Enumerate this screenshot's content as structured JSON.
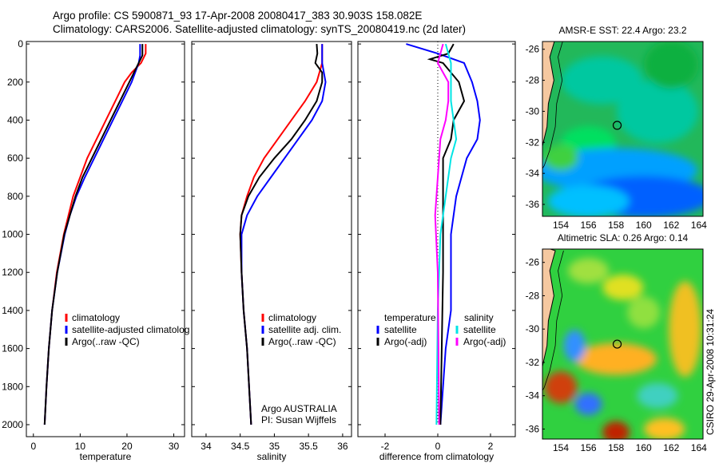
{
  "title": {
    "line1": "Argo profile: CS 5900871_93 17-Apr-2008 20080417_383 30.903S 158.082E",
    "line2": "Climatology: CARS2006. Satellite-adjusted climatology: synTS_20080419.nc (2d later)"
  },
  "credit": "CSIRO 29-Apr-2008 10:31:24",
  "chart_data": [
    {
      "type": "line",
      "xlabel": "temperature",
      "ylabel": "",
      "xlim": [
        -1.5,
        32.3
      ],
      "ylim": [
        2063,
        -13
      ],
      "xticks": [
        0,
        10,
        20,
        30
      ],
      "yticks": [
        0,
        200,
        400,
        600,
        800,
        1000,
        1200,
        1400,
        1600,
        1800,
        2000
      ],
      "legend": {
        "placement": "bottom-right",
        "entries": [
          "climatology",
          "satellite-adjusted climatolog",
          "Argo(..raw -QC)"
        ]
      },
      "series": [
        {
          "name": "climatology",
          "color": "#ff0000",
          "depth": [
            0,
            50,
            100,
            150,
            200,
            300,
            400,
            500,
            600,
            700,
            800,
            900,
            1000,
            1200,
            1400,
            1600,
            1800,
            2000
          ],
          "values": [
            24,
            24,
            23,
            21,
            19.5,
            17.5,
            15.5,
            13.5,
            11.5,
            10,
            8.5,
            7.5,
            6.5,
            5,
            4,
            3.3,
            2.8,
            2.4
          ]
        },
        {
          "name": "satellite-adjusted climatology",
          "color": "#0000ff",
          "depth": [
            0,
            60,
            100,
            200,
            300,
            400,
            500,
            600,
            700,
            800,
            900,
            1000,
            1200,
            1400,
            1600,
            1800,
            2000
          ],
          "values": [
            22.8,
            22.8,
            22.5,
            21,
            19,
            17,
            15,
            13,
            11,
            9.2,
            7.8,
            6.7,
            5.1,
            4,
            3.3,
            2.8,
            2.4
          ]
        },
        {
          "name": "Argo(..raw -QC)",
          "color": "#000000",
          "depth": [
            0,
            60,
            100,
            200,
            300,
            400,
            500,
            600,
            700,
            800,
            900,
            1000,
            1200,
            1400,
            1600,
            1800,
            2000
          ],
          "values": [
            23.3,
            23.3,
            22.5,
            20.5,
            18.5,
            16.5,
            14.5,
            12.5,
            10.5,
            9,
            7.8,
            6.6,
            5.1,
            4,
            3.3,
            2.8,
            2.4
          ]
        }
      ]
    },
    {
      "type": "line",
      "xlabel": "salinity",
      "xlim": [
        33.79,
        36.13
      ],
      "ylim": [
        2063,
        -13
      ],
      "xticks": [
        34,
        34.5,
        35,
        35.5,
        36
      ],
      "legend": {
        "placement": "bottom-right",
        "entries": [
          "climatology",
          "satellite adj. clim.",
          "Argo(..raw -QC)"
        ]
      },
      "annotation": [
        "Argo AUSTRALIA",
        "PI: Susan Wijffels"
      ],
      "series": [
        {
          "name": "climatology",
          "color": "#ff0000",
          "depth": [
            0,
            100,
            200,
            300,
            400,
            500,
            600,
            700,
            800,
            900,
            1000,
            1200,
            1400,
            1600,
            1800,
            2000
          ],
          "values": [
            35.7,
            35.7,
            35.62,
            35.45,
            35.25,
            35.05,
            34.85,
            34.7,
            34.6,
            34.52,
            34.5,
            34.52,
            34.55,
            34.6,
            34.63,
            34.66
          ]
        },
        {
          "name": "satellite adj. clim.",
          "color": "#0000ff",
          "depth": [
            0,
            100,
            200,
            300,
            400,
            500,
            600,
            700,
            800,
            900,
            1000,
            1200,
            1400,
            1600,
            1800,
            2000
          ],
          "values": [
            35.7,
            35.7,
            35.75,
            35.7,
            35.55,
            35.35,
            35.15,
            34.95,
            34.75,
            34.6,
            34.52,
            34.52,
            34.55,
            34.6,
            34.63,
            34.66
          ]
        },
        {
          "name": "Argo(..raw -QC)",
          "color": "#000000",
          "depth": [
            0,
            50,
            100,
            150,
            200,
            300,
            400,
            500,
            600,
            700,
            800,
            900,
            1000,
            1200,
            1400,
            1600,
            1800,
            2000
          ],
          "values": [
            35.62,
            35.63,
            35.6,
            35.7,
            35.7,
            35.62,
            35.45,
            35.25,
            35.0,
            34.78,
            34.62,
            34.52,
            34.5,
            34.52,
            34.55,
            34.6,
            34.63,
            34.66
          ]
        }
      ]
    },
    {
      "type": "line",
      "xlabel": "difference from climatology",
      "xlim": [
        -3.03,
        2.94
      ],
      "ylim": [
        2063,
        -13
      ],
      "xticks": [
        -2,
        0,
        2
      ],
      "legend": {
        "placement": "bottom",
        "entries": [
          "temperature",
          "satellite",
          "Argo(-adj)",
          "salinity",
          "satellite",
          "Argo(-adj)"
        ]
      },
      "series": [
        {
          "name": "temperature satellite",
          "color": "#0000ff",
          "depth": [
            0,
            50,
            100,
            200,
            300,
            400,
            500,
            600,
            700,
            800,
            1000,
            1200,
            1400,
            1600,
            2000
          ],
          "values": [
            -1.2,
            0,
            1.0,
            1.3,
            1.5,
            1.6,
            1.5,
            1.1,
            0.9,
            0.7,
            0.5,
            0.5,
            0.5,
            0.3,
            0.1
          ]
        },
        {
          "name": "temperature Argo(-adj)",
          "color": "#000000",
          "depth": [
            0,
            50,
            80,
            100,
            200,
            300,
            400,
            500,
            600,
            800,
            1000,
            1200,
            1600,
            2000
          ],
          "values": [
            0.6,
            0.4,
            -0.3,
            0.2,
            0.8,
            1.0,
            0.6,
            0.5,
            0.2,
            0.2,
            0.2,
            0.2,
            0.15,
            0.1
          ]
        },
        {
          "name": "salinity satellite",
          "color": "#00e5e5",
          "depth": [
            0,
            100,
            200,
            300,
            400,
            500,
            600,
            800,
            1000,
            1400,
            2000
          ],
          "values": [
            0.3,
            0.5,
            0.5,
            0.5,
            0.6,
            0.7,
            0.5,
            0.3,
            0.1,
            0,
            -0.05
          ]
        },
        {
          "name": "salinity Argo(-adj)",
          "color": "#ff00ff",
          "depth": [
            0,
            100,
            200,
            300,
            400,
            500,
            700,
            900,
            1200,
            2000
          ],
          "values": [
            0.2,
            0,
            0.4,
            0.4,
            0.3,
            0.1,
            0,
            -0.1,
            0,
            0.05
          ]
        }
      ]
    },
    {
      "type": "heatmap",
      "title": "AMSR-E SST: 22.4  Argo: 23.2",
      "xlim": [
        152.67,
        164.3
      ],
      "ylim": [
        -36.77,
        -25.5
      ],
      "xticks": [
        154,
        156,
        158,
        160,
        162,
        164
      ],
      "yticks": [
        -26,
        -28,
        -30,
        -32,
        -34,
        -36
      ],
      "marker": [
        158.082,
        -30.903
      ]
    },
    {
      "type": "heatmap",
      "title": "Altimetric SLA: 0.26  Argo: 0.14",
      "xlim": [
        152.67,
        164.3
      ],
      "ylim": [
        -36.6,
        -25.2
      ],
      "xticks": [
        154,
        156,
        158,
        160,
        162,
        164
      ],
      "yticks": [
        -26,
        -28,
        -30,
        -32,
        -34,
        -36
      ],
      "marker": [
        158.082,
        -30.903
      ]
    }
  ]
}
